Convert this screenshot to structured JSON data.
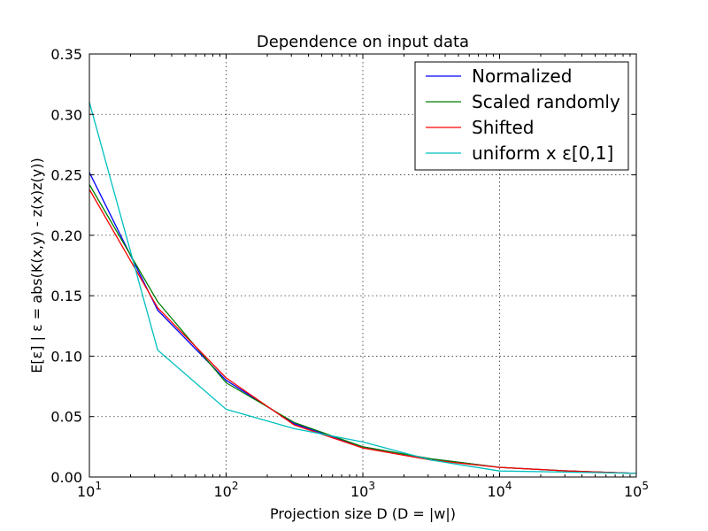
{
  "chart_data": {
    "type": "line",
    "title": "Dependence on input data",
    "xlabel": "Projection size D (D = |w|)",
    "ylabel": "E[ε] | ε = abs(K(x,y) - z(x)z(y))",
    "x_scale": "log",
    "x_base": 10,
    "xlim": [
      10,
      100000
    ],
    "ylim": [
      0,
      0.35
    ],
    "x_ticks": [
      {
        "value": 10,
        "base": "10",
        "exp": "1"
      },
      {
        "value": 100,
        "base": "10",
        "exp": "2"
      },
      {
        "value": 1000,
        "base": "10",
        "exp": "3"
      },
      {
        "value": 10000,
        "base": "10",
        "exp": "4"
      },
      {
        "value": 100000,
        "base": "10",
        "exp": "5"
      }
    ],
    "y_ticks": [
      {
        "value": 0.0,
        "label": "0.00"
      },
      {
        "value": 0.05,
        "label": "0.05"
      },
      {
        "value": 0.1,
        "label": "0.10"
      },
      {
        "value": 0.15,
        "label": "0.15"
      },
      {
        "value": 0.2,
        "label": "0.20"
      },
      {
        "value": 0.25,
        "label": "0.25"
      },
      {
        "value": 0.3,
        "label": "0.30"
      },
      {
        "value": 0.35,
        "label": "0.35"
      }
    ],
    "grid": true,
    "legend_position": "top-right",
    "series": [
      {
        "name": "Normalized",
        "color": "#0000ff",
        "x": [
          10,
          31.6,
          100,
          316,
          1000,
          3162,
          10000,
          31623,
          100000
        ],
        "y": [
          0.252,
          0.138,
          0.08,
          0.044,
          0.025,
          0.015,
          0.008,
          0.005,
          0.003
        ]
      },
      {
        "name": "Scaled randomly",
        "color": "#008000",
        "x": [
          10,
          31.6,
          100,
          316,
          1000,
          3162,
          10000,
          31623,
          100000
        ],
        "y": [
          0.242,
          0.145,
          0.078,
          0.045,
          0.025,
          0.015,
          0.008,
          0.005,
          0.003
        ]
      },
      {
        "name": "Shifted",
        "color": "#ff0000",
        "x": [
          10,
          31.6,
          100,
          316,
          1000,
          3162,
          10000,
          31623,
          100000
        ],
        "y": [
          0.238,
          0.14,
          0.082,
          0.043,
          0.024,
          0.014,
          0.008,
          0.005,
          0.003
        ]
      },
      {
        "name": "uniform x ε[0,1]",
        "color": "#00bfbf",
        "x": [
          10,
          31.6,
          100,
          316,
          1000,
          3162,
          10000,
          31623,
          100000
        ],
        "y": [
          0.31,
          0.105,
          0.056,
          0.04,
          0.029,
          0.014,
          0.005,
          0.004,
          0.003
        ]
      }
    ]
  }
}
